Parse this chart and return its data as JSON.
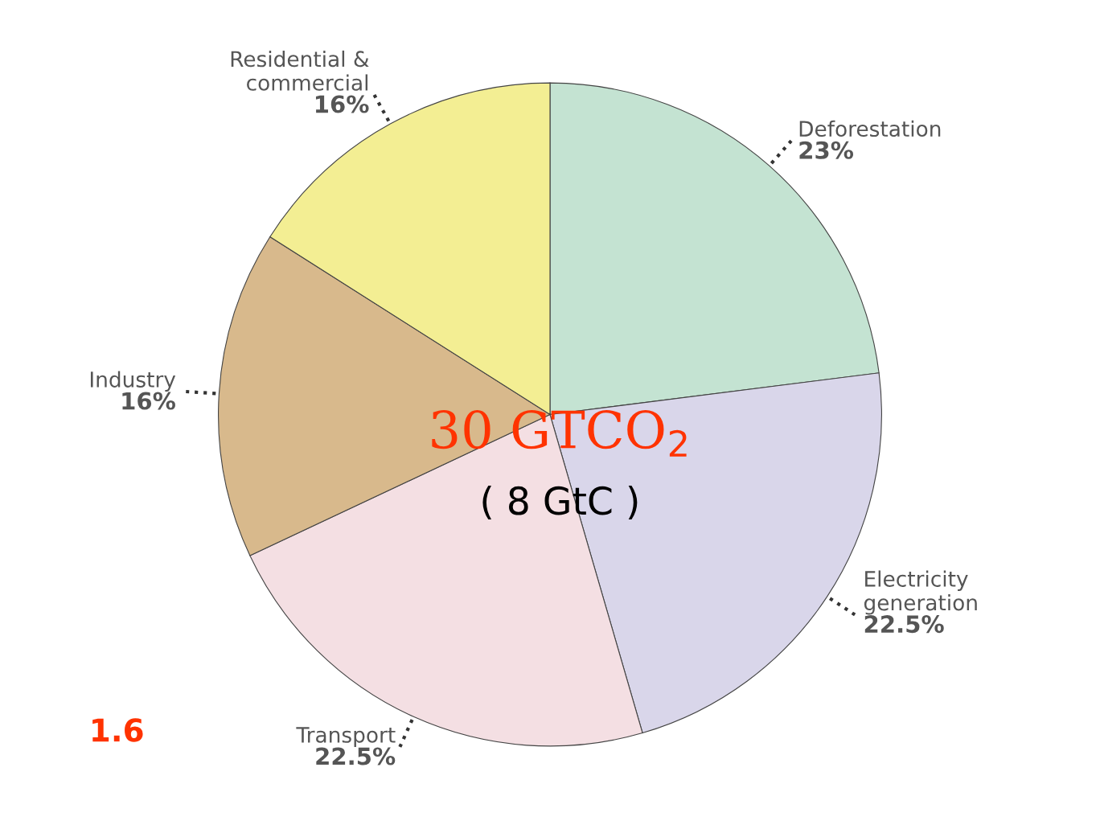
{
  "chart_data": {
    "type": "pie",
    "categories": [
      "Deforestation",
      "Electricity\ngeneration",
      "Transport",
      "Industry",
      "Residential &\ncommercial"
    ],
    "values": [
      23,
      22.5,
      22.5,
      16,
      16
    ],
    "value_labels": [
      "23%",
      "22.5%",
      "22.5%",
      "16%",
      "16%"
    ],
    "colors": [
      "#c4e3d2",
      "#d9d6ea",
      "#f4dfe3",
      "#d8b98c",
      "#f3ee93"
    ],
    "annotations": [
      "30 GTCO$_{2}$",
      "( 8 GtC )",
      "1.6"
    ]
  }
}
